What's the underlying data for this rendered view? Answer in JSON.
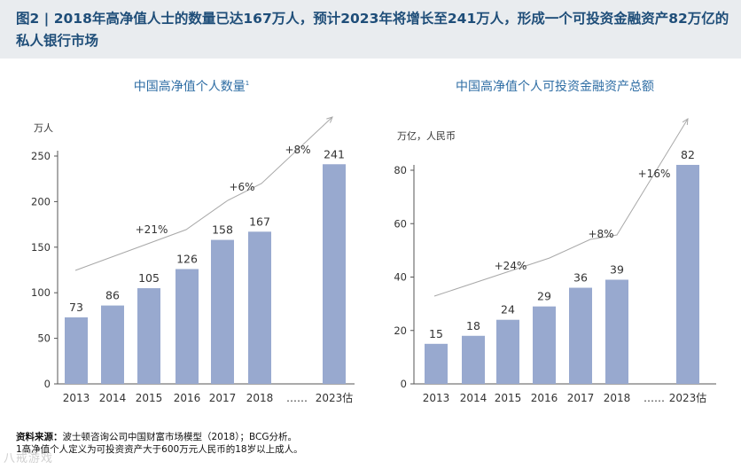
{
  "header": {
    "title": "图2 | 2018年高净值人士的数量已达167万人，预计2023年将增长至241万人，形成一个可投资金融资产82万亿的私人银行市场"
  },
  "colors": {
    "bar": "#98a9cf",
    "trend": "#a8a8a8",
    "chart_title": "#2e6da4",
    "header_bg": "#e9ecef",
    "header_text": "#1f4e79"
  },
  "chart_data": [
    {
      "type": "bar",
      "title": "中国高净值个人数量",
      "title_sup": "1",
      "ylabel": "万人",
      "categories": [
        "2013",
        "2014",
        "2015",
        "2016",
        "2017",
        "2018",
        "……",
        "2023估"
      ],
      "values": [
        73,
        86,
        105,
        126,
        158,
        167,
        null,
        241
      ],
      "ylim": [
        0,
        250
      ],
      "yticks": [
        "0",
        "50",
        "100",
        "150",
        "200",
        "250"
      ],
      "growth_annotations": [
        "+21%",
        "+6%",
        "+8%"
      ]
    },
    {
      "type": "bar",
      "title": "中国高净值个人可投资金融资产总额",
      "ylabel": "万亿，人民币",
      "categories": [
        "2013",
        "2014",
        "2015",
        "2016",
        "2017",
        "2018",
        "……",
        "2023估"
      ],
      "values": [
        15,
        18,
        24,
        29,
        36,
        39,
        null,
        82
      ],
      "ylim": [
        0,
        80
      ],
      "yticks": [
        "0",
        "20",
        "40",
        "60",
        "80"
      ],
      "growth_annotations": [
        "+24%",
        "+8%",
        "+16%"
      ]
    }
  ],
  "footer": {
    "source_label": "资料来源：",
    "source_text": "波士顿咨询公司中国财富市场模型（2018）；BCG分析。",
    "note": "1高净值个人定义为可投资资产大于600万元人民币的18岁以上成人。"
  },
  "watermark": "八戒游戏"
}
